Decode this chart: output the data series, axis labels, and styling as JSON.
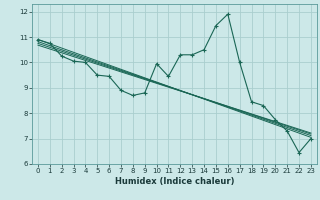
{
  "xlabel": "Humidex (Indice chaleur)",
  "ylabel": "",
  "xlim": [
    -0.5,
    23.5
  ],
  "ylim": [
    6,
    12.3
  ],
  "yticks": [
    6,
    7,
    8,
    9,
    10,
    11,
    12
  ],
  "xticks": [
    0,
    1,
    2,
    3,
    4,
    5,
    6,
    7,
    8,
    9,
    10,
    11,
    12,
    13,
    14,
    15,
    16,
    17,
    18,
    19,
    20,
    21,
    22,
    23
  ],
  "bg_color": "#cce8e8",
  "grid_color": "#aacece",
  "line_color": "#1a6655",
  "series": [
    [
      0,
      10.9
    ],
    [
      1,
      10.75
    ],
    [
      2,
      10.25
    ],
    [
      3,
      10.05
    ],
    [
      4,
      10.0
    ],
    [
      5,
      9.5
    ],
    [
      6,
      9.45
    ],
    [
      7,
      8.9
    ],
    [
      8,
      8.7
    ],
    [
      9,
      8.8
    ],
    [
      10,
      9.95
    ],
    [
      11,
      9.45
    ],
    [
      12,
      10.3
    ],
    [
      13,
      10.3
    ],
    [
      14,
      10.5
    ],
    [
      15,
      11.45
    ],
    [
      16,
      11.9
    ],
    [
      17,
      10.0
    ],
    [
      18,
      8.45
    ],
    [
      19,
      8.3
    ],
    [
      20,
      7.75
    ],
    [
      21,
      7.3
    ],
    [
      22,
      6.45
    ],
    [
      23,
      7.0
    ]
  ],
  "linear_series": [
    [
      [
        0,
        10.9
      ],
      [
        23,
        7.05
      ]
    ],
    [
      [
        0,
        10.82
      ],
      [
        23,
        7.12
      ]
    ],
    [
      [
        0,
        10.75
      ],
      [
        23,
        7.18
      ]
    ],
    [
      [
        0,
        10.68
      ],
      [
        23,
        7.22
      ]
    ]
  ],
  "xlabel_fontsize": 6.0,
  "tick_fontsize": 5.0
}
